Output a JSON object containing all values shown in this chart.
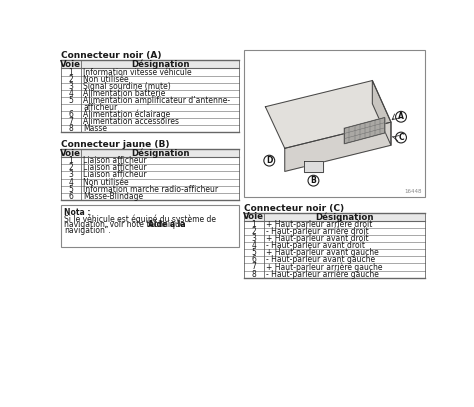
{
  "title_A": "Connecteur noir (A)",
  "title_B": "Connecteur jaune (B)",
  "title_C": "Connecteur noir (C)",
  "header_voie": "Voie",
  "header_desig": "Désignation",
  "table_A": {
    "voies": [
      "1",
      "2",
      "3",
      "4",
      "5",
      "",
      "6",
      "7",
      "8"
    ],
    "designations": [
      "Information vitesse véhicule",
      "Non utilisée",
      "Signal sourdine (mute)",
      "Alimentation batterie",
      "Alimentation amplificateur d’antenne-",
      "afficheur",
      "Alimentation éclairage",
      "Alimentation accessoires",
      "Masse"
    ]
  },
  "table_B": {
    "voies": [
      "1",
      "2",
      "3",
      "4",
      "5",
      "6"
    ],
    "designations": [
      "Liaison afficheur",
      "Liaison afficheur",
      "Liaison afficheur",
      "Non utilisée",
      "Information marche radio-afficheur",
      "Masse-Blindage"
    ]
  },
  "table_C": {
    "voies": [
      "1",
      "2",
      "3",
      "4",
      "5",
      "6",
      "7",
      "8"
    ],
    "designations": [
      "+ Haut-parleur arrière droit",
      "- Haut-parleur arrière droit",
      "+ Haut-parleur avant droit",
      "- Haut-parleur avant droit",
      "+ Haut-parleur avant gauche",
      "- Haut-parleur avant gauche",
      "+ Haut-parleur arrière gauche",
      "- Haut-parleur arrière gauche"
    ]
  },
  "nota_title": "Nota :",
  "nota_text1": "Si le véhicule est équipé du système de",
  "nota_text2": "navigation, voir note technique “",
  "nota_text2b": "Aide à la",
  "nota_text3": "navigation”.",
  "bg_color": "#ffffff",
  "line_color": "#666666",
  "text_color": "#1a1a1a",
  "header_bg": "#e8e8e8",
  "table_bg": "#ffffff"
}
